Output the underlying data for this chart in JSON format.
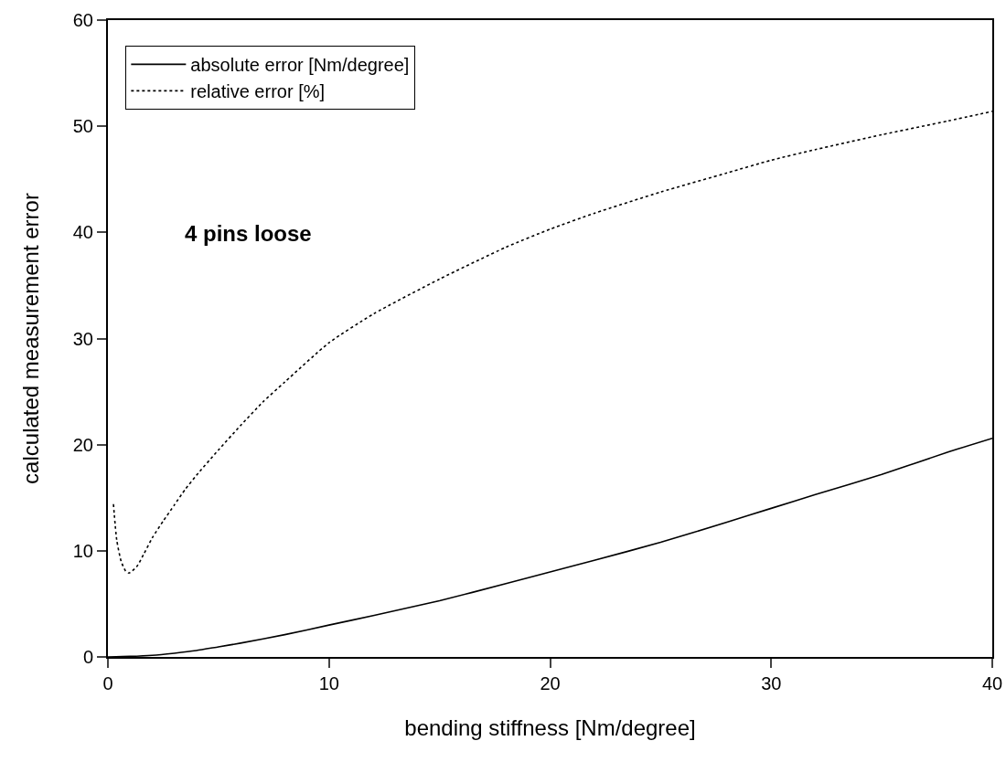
{
  "chart_data": {
    "type": "line",
    "xlabel": "bending stiffness [Nm/degree]",
    "ylabel": "calculated measurement error",
    "annotations": [
      "4 pins loose"
    ],
    "series": [
      {
        "name": "absolute error [Nm/degree]",
        "color": "#000000",
        "line_style": "solid",
        "x": [
          0,
          1,
          2,
          3,
          4,
          5,
          6,
          8,
          10,
          12,
          15,
          18,
          20,
          22,
          25,
          28,
          30,
          32,
          35,
          38,
          40
        ],
        "values": [
          0,
          0.05,
          0.15,
          0.35,
          0.6,
          0.95,
          1.3,
          2.1,
          3,
          3.9,
          5.3,
          6.9,
          8,
          9.1,
          10.8,
          12.7,
          14,
          15.3,
          17.2,
          19.3,
          20.6
        ]
      },
      {
        "name": "relative error [%]",
        "color": "#000000",
        "line_style": "dotted",
        "x": [
          0.25,
          0.4,
          0.6,
          0.8,
          0.95,
          1.3,
          1.6,
          2,
          2.5,
          3,
          3.5,
          4,
          5,
          6,
          7,
          8,
          10,
          12,
          15,
          18,
          20,
          22,
          25,
          28,
          30,
          32,
          35,
          38,
          40
        ],
        "values": [
          14.4,
          11,
          9,
          8.1,
          7.9,
          8.5,
          9.6,
          11.2,
          12.8,
          14.3,
          15.8,
          17.1,
          19.5,
          21.8,
          24,
          25.9,
          29.6,
          32.3,
          35.6,
          38.6,
          40.3,
          41.8,
          43.8,
          45.6,
          46.8,
          47.8,
          49.2,
          50.5,
          51.4
        ]
      }
    ],
    "xlim": [
      0,
      40
    ],
    "xticks": [
      0,
      10,
      20,
      30,
      40
    ],
    "ylim": [
      0,
      60
    ],
    "yticks": [
      0,
      10,
      20,
      30,
      40,
      50,
      60
    ],
    "grid": false,
    "legend": "top left",
    "marker": "none"
  }
}
